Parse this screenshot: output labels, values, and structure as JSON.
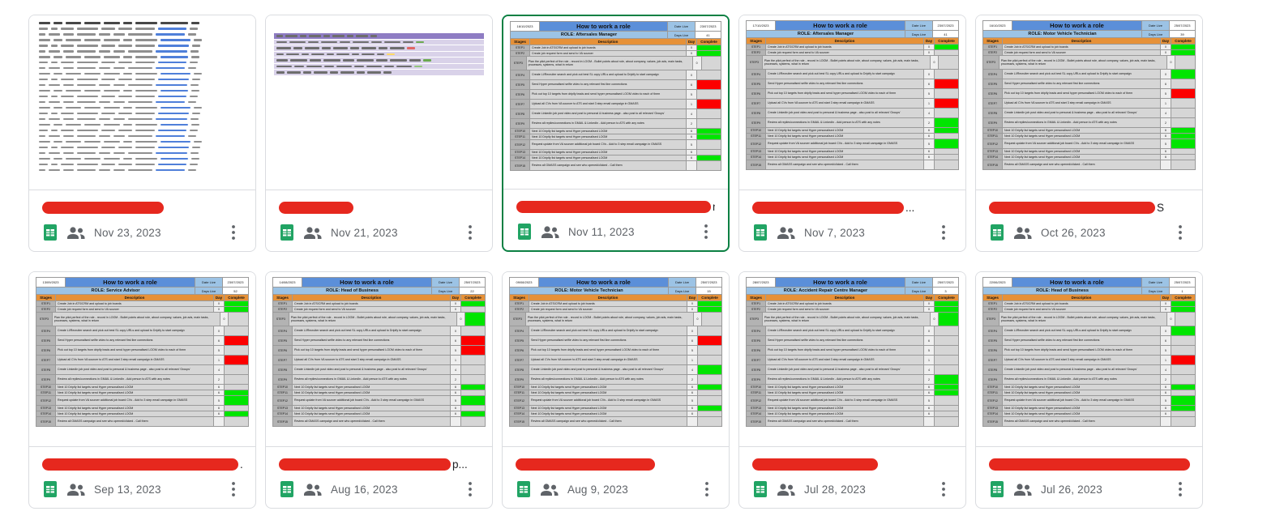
{
  "colors": {
    "selected_border": "#0b8043",
    "redaction_red": "#e6281e",
    "sheets_green": "#21a464",
    "meta_grey": "#5f6368",
    "status_green": "#00e500",
    "status_red": "#fc0000",
    "sheet_title_blue": "#5b8fd9",
    "sheet_role_blue": "#9cc3e5",
    "sheet_header_orange": "#e69138",
    "link_blue": "#4f7fd9",
    "purple_band": "#d9d2e9"
  },
  "icons": {
    "file_type": "sheets-icon",
    "shared": "shared-people-icon",
    "more": "more-options-icon"
  },
  "sheet_template": {
    "title": "How to work a role",
    "date_live_label": "Date Live",
    "days_live_label": "Days Live",
    "headers": [
      "Stages",
      "Description",
      "Day",
      "Complete"
    ],
    "days": [
      "0",
      "0",
      "0",
      "0",
      "6",
      "5",
      "1",
      "4",
      "2",
      "6",
      "6",
      "5",
      "6",
      "6",
      ""
    ],
    "steps": [
      {
        "label": "STEP1",
        "desc": "Create Job in ATS/CRM and upload to job boards",
        "lines": 1
      },
      {
        "label": "STEP2",
        "desc": "Create job request form and send to VA sourcer",
        "lines": 1
      },
      {
        "label": "STEP3",
        "desc": "Plan the pilot perfect of the role - record in LOOM - Bullet points about role, about company, values, job ads, main tasks, processes, systems, what in return",
        "lines": 3
      },
      {
        "label": "STEP4",
        "desc": "Create LI/Recruiter search and pick out best SL copy URLs and upload to Dripify to start campaign",
        "lines": 2
      },
      {
        "label": "STEP5",
        "desc": "Send Hyper personalised selfie video to any relevant first line connections",
        "lines": 2
      },
      {
        "label": "STEP6",
        "desc": "Pick out top 10 targets from dripify leads and send hyper personalised LOOM video to each of them",
        "lines": 2
      },
      {
        "label": "STEP7",
        "desc": "Upload all CVs from VA sourcer to ATS and start 3 step email campaign in GMASS",
        "lines": 2
      },
      {
        "label": "STEP8",
        "desc": "Create LinkedIn job post video and post to personal & business page - also post to all relevant 'Groups'",
        "lines": 2
      },
      {
        "label": "STEP9",
        "desc": "Review all replies/connections in GMAIL & LinkedIn - Add person to ATS with any notes",
        "lines": 2
      },
      {
        "label": "STEP10",
        "desc": "Next 10 Dripify list targets send Hyper personalised LOOM",
        "lines": 1
      },
      {
        "label": "STEP11",
        "desc": "Next 10 Dripify list targets send Hyper personalised LOOM",
        "lines": 1
      },
      {
        "label": "STEP12",
        "desc": "Request update from VA sourcer additional job board CVs - Add to 3 step email campaign in GMASS",
        "lines": 2
      },
      {
        "label": "STEP13",
        "desc": "Next 10 Dripify list targets send Hyper personalised LOOM",
        "lines": 1
      },
      {
        "label": "STEP14",
        "desc": "Next 10 Dripify list targets send Hyper personalised LOOM",
        "lines": 1
      },
      {
        "label": "STEP15",
        "desc": "Review all GMASS campaign and see who opened/clicked - Call them",
        "lines": 2
      }
    ]
  },
  "cards": [
    {
      "date": "Nov 23, 2023",
      "thumb": "contacts",
      "suffix": "",
      "selected": false,
      "redaction_width": 150
    },
    {
      "date": "Nov 21, 2023",
      "thumb": "purple",
      "suffix": "",
      "selected": false,
      "redaction_width": 92
    },
    {
      "date": "Nov 11, 2023",
      "thumb": "role",
      "suffix": "n",
      "selected": true,
      "redaction_width": 240,
      "sheet": {
        "corner_date": "16/10/2023",
        "role": "ROLE: Aftersales Manager",
        "date_live": "23/07/2023",
        "days_live": "41",
        "status": [
          "g",
          "g",
          "",
          "",
          "r",
          "",
          "r",
          "",
          "",
          "g",
          "g",
          "",
          "",
          "g",
          ""
        ]
      }
    },
    {
      "date": "Nov 7, 2023",
      "thumb": "role",
      "suffix": "...",
      "selected": false,
      "redaction_width": 187,
      "sheet": {
        "corner_date": "17/10/2023",
        "role": "ROLE: Aftersales Manager",
        "date_live": "23/07/2023",
        "days_live": "41",
        "status": [
          "g",
          "",
          "",
          "",
          "r",
          "",
          "r",
          "",
          "g",
          "g",
          "",
          "g",
          "",
          "",
          ""
        ]
      }
    },
    {
      "date": "Oct 26, 2023",
      "thumb": "role",
      "suffix": "S",
      "selected": false,
      "redaction_width": 205,
      "sheet": {
        "corner_date": "16/10/2023",
        "role": "ROLE: Motor Vehicle Technician",
        "date_live": "25/07/2023",
        "days_live": "39",
        "status": [
          "g",
          "g",
          "",
          "g",
          "",
          "r",
          "",
          "",
          "",
          "g",
          "g",
          "g",
          "",
          "",
          ""
        ]
      }
    },
    {
      "date": "Sep 13, 2023",
      "thumb": "role",
      "suffix": "...",
      "selected": false,
      "redaction_width": 242,
      "sheet": {
        "corner_date": "13/09/2023",
        "role": "ROLE: Service Advisor",
        "date_live": "23/07/2023",
        "days_live": "52",
        "status": [
          "g",
          "g",
          "",
          "",
          "r",
          "",
          "r",
          "",
          "",
          "",
          "g",
          "g",
          "",
          "g",
          ""
        ]
      }
    },
    {
      "date": "Aug 16, 2023",
      "thumb": "role",
      "suffix": "p...",
      "selected": false,
      "redaction_width": 212,
      "sheet": {
        "corner_date": "14/08/2023",
        "role": "ROLE: Head of Business",
        "date_live": "25/07/2023",
        "days_live": "22",
        "status": [
          "g",
          "",
          "g",
          "",
          "r",
          "r",
          "",
          "",
          "",
          "g",
          "",
          "g",
          "",
          "g",
          ""
        ]
      }
    },
    {
      "date": "Aug 9, 2023",
      "thumb": "role",
      "suffix": "",
      "selected": false,
      "redaction_width": 172,
      "sheet": {
        "corner_date": "09/08/2023",
        "role": "ROLE: Motor Vehicle Technician",
        "date_live": "25/07/2023",
        "days_live": "15",
        "status": [
          "g",
          "g",
          "",
          "",
          "r",
          "",
          "",
          "g",
          "",
          "g",
          "",
          "",
          "g",
          "",
          ""
        ]
      }
    },
    {
      "date": "Jul 28, 2023",
      "thumb": "role",
      "suffix": "",
      "selected": false,
      "redaction_width": 155,
      "sheet": {
        "corner_date": "28/07/2023",
        "role": "ROLE: Accident Repair Centre Manager",
        "date_live": "25/07/2023",
        "days_live": "3",
        "status": [
          "g",
          "g",
          "g",
          "",
          "",
          "",
          "",
          "",
          "g",
          "g",
          "g",
          "",
          "",
          "",
          ""
        ]
      }
    },
    {
      "date": "Jul 26, 2023",
      "thumb": "role",
      "suffix": "",
      "selected": false,
      "redaction_width": 248,
      "sheet": {
        "corner_date": "22/06/2023",
        "role": "ROLE: Head of Business",
        "date_live": "25/07/2023",
        "days_live": "1",
        "status": [
          "g",
          "g",
          "",
          "g",
          "",
          "",
          "r",
          "",
          "",
          "g",
          "",
          "g",
          "g",
          "",
          ""
        ]
      }
    }
  ]
}
